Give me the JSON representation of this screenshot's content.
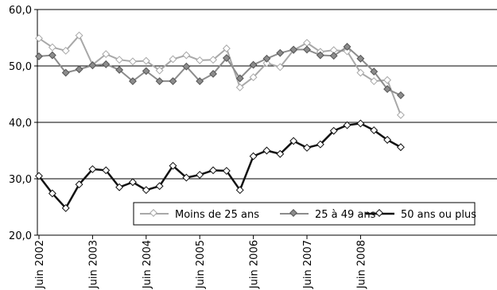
{
  "chart_data": {
    "type": "line",
    "title": "",
    "xlabel": "",
    "ylabel": "",
    "ylim": [
      20,
      60
    ],
    "yticks": [
      "20,0",
      "30,0",
      "40,0",
      "50,0",
      "60,0"
    ],
    "xticks": [
      {
        "label": "Juin 2002",
        "index": 0
      },
      {
        "label": "Juin 2003",
        "index": 4
      },
      {
        "label": "Juin 2004",
        "index": 8
      },
      {
        "label": "Juin 2005",
        "index": 12
      },
      {
        "label": "Juin 2006",
        "index": 16
      },
      {
        "label": "Juin 2007",
        "index": 20
      },
      {
        "label": "Juin 2008",
        "index": 24
      }
    ],
    "grid": "horizontal",
    "legend_position": "bottom-right",
    "series": [
      {
        "name": "Moins de 25 ans",
        "color": "#a8a8a8",
        "marker": "hollow-diamond",
        "values": [
          54.9,
          53.3,
          52.7,
          55.4,
          50.2,
          52.1,
          51.1,
          50.8,
          50.9,
          49.2,
          51.2,
          51.9,
          51.0,
          51.1,
          53.1,
          46.2,
          48.0,
          50.5,
          49.8,
          52.8,
          54.1,
          52.5,
          52.8,
          52.6,
          48.8,
          47.3,
          47.5,
          41.3
        ]
      },
      {
        "name": "25 à 49 ans",
        "color": "#8c8c8c",
        "marker": "filled-diamond",
        "values": [
          51.7,
          51.9,
          48.8,
          49.4,
          50.1,
          50.3,
          49.3,
          47.3,
          49.1,
          47.3,
          47.3,
          49.9,
          47.3,
          48.6,
          51.4,
          47.8,
          50.2,
          51.3,
          52.3,
          52.9,
          52.9,
          51.9,
          51.8,
          53.4,
          51.3,
          49.0,
          45.9,
          44.8
        ]
      },
      {
        "name": "50 ans ou plus",
        "color": "#111111",
        "marker": "hollow-diamond",
        "values": [
          30.5,
          27.4,
          24.8,
          29.0,
          31.7,
          31.5,
          28.5,
          29.4,
          28.0,
          28.7,
          32.3,
          30.2,
          30.7,
          31.5,
          31.4,
          28.0,
          34.0,
          35.0,
          34.4,
          36.7,
          35.5,
          36.1,
          38.5,
          39.5,
          39.8,
          38.6,
          36.9,
          35.6
        ]
      }
    ]
  }
}
